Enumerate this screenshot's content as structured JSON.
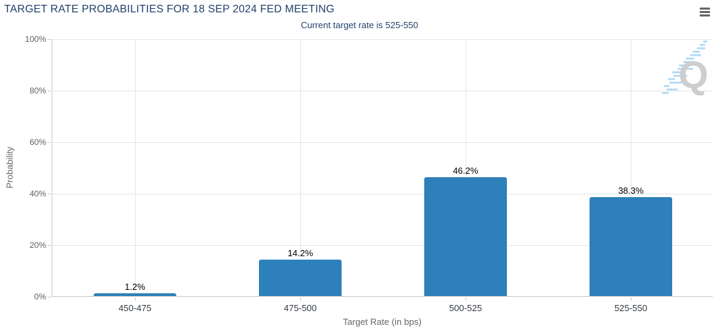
{
  "header": {
    "menu_icon": "hamburger-icon"
  },
  "watermark": {
    "letter": "Q"
  },
  "chart_data": {
    "type": "bar",
    "title": "TARGET RATE PROBABILITIES FOR 18 SEP 2024 FED MEETING",
    "subtitle": "Current target rate is 525-550",
    "categories": [
      "450-475",
      "475-500",
      "500-525",
      "525-550"
    ],
    "values": [
      1.2,
      14.2,
      46.2,
      38.3
    ],
    "value_labels": [
      "1.2%",
      "14.2%",
      "46.2%",
      "38.3%"
    ],
    "xlabel": "Target Rate (in bps)",
    "ylabel": "Probability",
    "ylim": [
      0,
      100
    ],
    "yticks": [
      0,
      20,
      40,
      60,
      80,
      100
    ],
    "ytick_labels": [
      "0%",
      "20%",
      "40%",
      "60%",
      "80%",
      "100%"
    ],
    "grid": true,
    "legend": "none",
    "bar_color": "#2d80ba"
  },
  "colors": {
    "title_text": "#21426c",
    "bar": "#2d80ba",
    "gridline": "#e6e6e6",
    "axis_line": "#c9c9c9",
    "axis_title_text": "#666666",
    "category_label_text": "#333940",
    "value_label_text": "#000000",
    "menu_icon": "#666666",
    "watermark_q": "#c9c9c9",
    "watermark_dashes": "#a5d5f5"
  }
}
